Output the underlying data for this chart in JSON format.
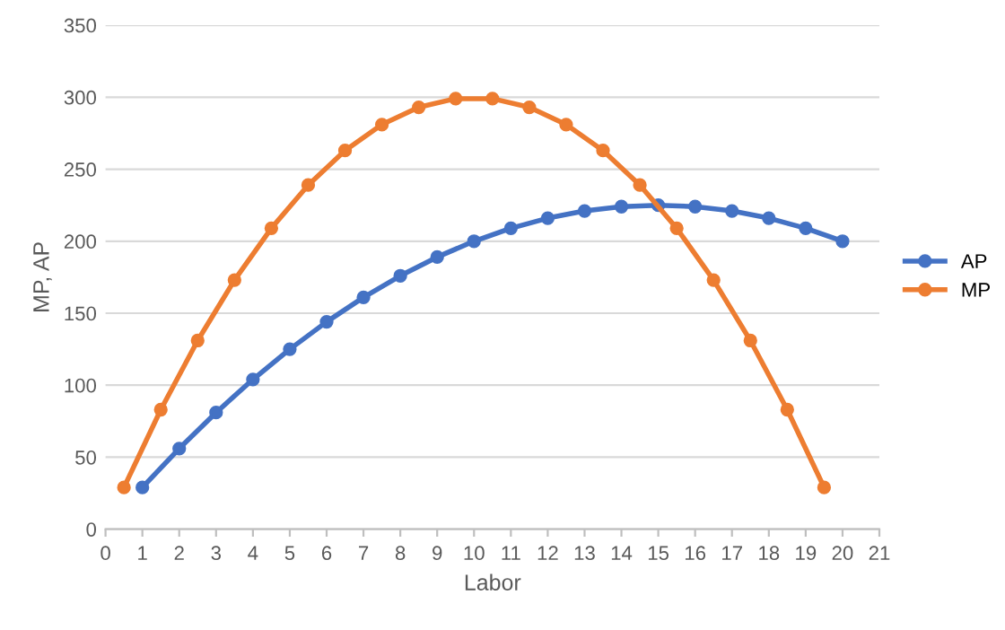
{
  "chart_data": {
    "type": "line",
    "xlabel": "Labor",
    "ylabel": "MP, AP",
    "series": [
      {
        "name": "AP",
        "color": "#4472c4",
        "x": [
          1,
          2,
          3,
          4,
          5,
          6,
          7,
          8,
          9,
          10,
          11,
          12,
          13,
          14,
          15,
          16,
          17,
          18,
          19,
          20
        ],
        "values": [
          29,
          56,
          81,
          104,
          125,
          144,
          161,
          176,
          189,
          200,
          209,
          216,
          221,
          224,
          225,
          224,
          221,
          216,
          209,
          200
        ]
      },
      {
        "name": "MP",
        "color": "#ed7d31",
        "x": [
          0.5,
          1.5,
          2.5,
          3.5,
          4.5,
          5.5,
          6.5,
          7.5,
          8.5,
          9.5,
          10.5,
          11.5,
          12.5,
          13.5,
          14.5,
          15.5,
          16.5,
          17.5,
          18.5,
          19.5
        ],
        "values": [
          29,
          83,
          131,
          173,
          209,
          239,
          263,
          281,
          293,
          299,
          299,
          293,
          281,
          263,
          239,
          209,
          173,
          131,
          83,
          29
        ]
      }
    ],
    "xlim": [
      0,
      21
    ],
    "xticks": [
      0,
      1,
      2,
      3,
      4,
      5,
      6,
      7,
      8,
      9,
      10,
      11,
      12,
      13,
      14,
      15,
      16,
      17,
      18,
      19,
      20,
      21
    ],
    "ylim": [
      0,
      350
    ],
    "yticks": [
      0,
      50,
      100,
      150,
      200,
      250,
      300,
      350
    ],
    "grid": "y",
    "legend": "right",
    "marker": "circle",
    "line_style": "solid"
  }
}
